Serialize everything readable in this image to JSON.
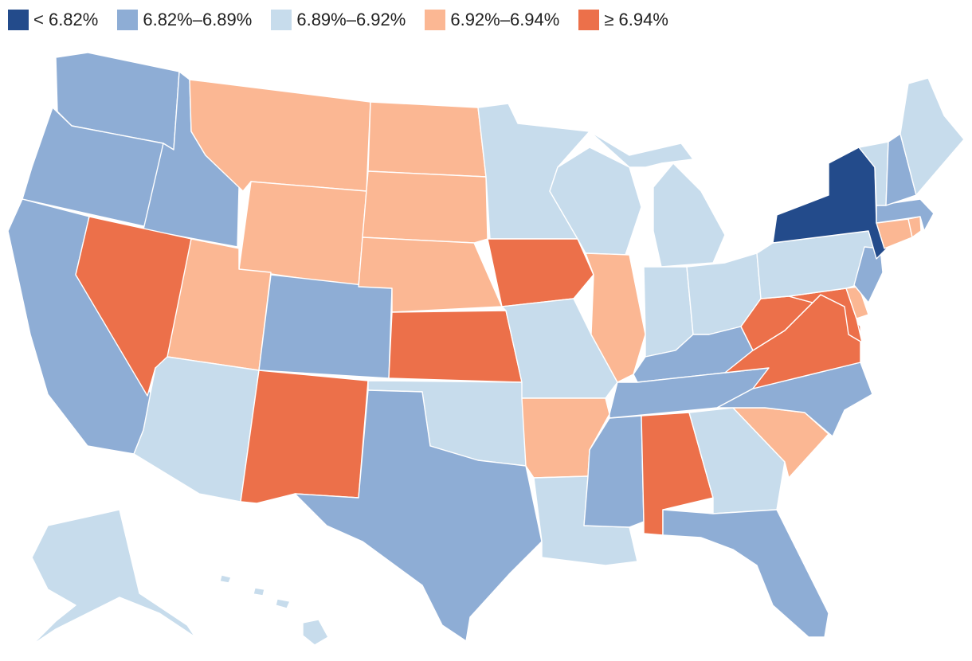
{
  "legend": [
    {
      "label": "< 6.82%",
      "color": "#234b8b"
    },
    {
      "label": "6.82%–6.89%",
      "color": "#8eadd5"
    },
    {
      "label": "6.89%–6.92%",
      "color": "#c7dcec"
    },
    {
      "label": "6.92%–6.94%",
      "color": "#fbb793"
    },
    {
      "label": "≥ 6.94%",
      "color": "#ec704a"
    }
  ],
  "states": [
    {
      "code": "WA",
      "bin": 1
    },
    {
      "code": "OR",
      "bin": 1
    },
    {
      "code": "CA",
      "bin": 1
    },
    {
      "code": "ID",
      "bin": 1
    },
    {
      "code": "NV",
      "bin": 4
    },
    {
      "code": "MT",
      "bin": 3
    },
    {
      "code": "WY",
      "bin": 3
    },
    {
      "code": "UT",
      "bin": 3
    },
    {
      "code": "AZ",
      "bin": 2
    },
    {
      "code": "CO",
      "bin": 1
    },
    {
      "code": "NM",
      "bin": 4
    },
    {
      "code": "ND",
      "bin": 3
    },
    {
      "code": "SD",
      "bin": 3
    },
    {
      "code": "NE",
      "bin": 3
    },
    {
      "code": "KS",
      "bin": 4
    },
    {
      "code": "OK",
      "bin": 2
    },
    {
      "code": "TX",
      "bin": 1
    },
    {
      "code": "MN",
      "bin": 2
    },
    {
      "code": "IA",
      "bin": 4
    },
    {
      "code": "MO",
      "bin": 2
    },
    {
      "code": "AR",
      "bin": 3
    },
    {
      "code": "LA",
      "bin": 2
    },
    {
      "code": "WI",
      "bin": 2
    },
    {
      "code": "IL",
      "bin": 3
    },
    {
      "code": "MI",
      "bin": 2
    },
    {
      "code": "IN",
      "bin": 2
    },
    {
      "code": "OH",
      "bin": 2
    },
    {
      "code": "KY",
      "bin": 1
    },
    {
      "code": "TN",
      "bin": 1
    },
    {
      "code": "MS",
      "bin": 1
    },
    {
      "code": "AL",
      "bin": 4
    },
    {
      "code": "GA",
      "bin": 2
    },
    {
      "code": "FL",
      "bin": 1
    },
    {
      "code": "SC",
      "bin": 3
    },
    {
      "code": "NC",
      "bin": 1
    },
    {
      "code": "VA",
      "bin": 4
    },
    {
      "code": "WV",
      "bin": 4
    },
    {
      "code": "MD",
      "bin": 4
    },
    {
      "code": "DE",
      "bin": 3
    },
    {
      "code": "PA",
      "bin": 2
    },
    {
      "code": "NJ",
      "bin": 1
    },
    {
      "code": "NY",
      "bin": 0
    },
    {
      "code": "CT",
      "bin": 3
    },
    {
      "code": "RI",
      "bin": 3
    },
    {
      "code": "MA",
      "bin": 1
    },
    {
      "code": "VT",
      "bin": 2
    },
    {
      "code": "NH",
      "bin": 1
    },
    {
      "code": "ME",
      "bin": 2
    },
    {
      "code": "AK",
      "bin": 2
    },
    {
      "code": "HI",
      "bin": 2
    }
  ]
}
